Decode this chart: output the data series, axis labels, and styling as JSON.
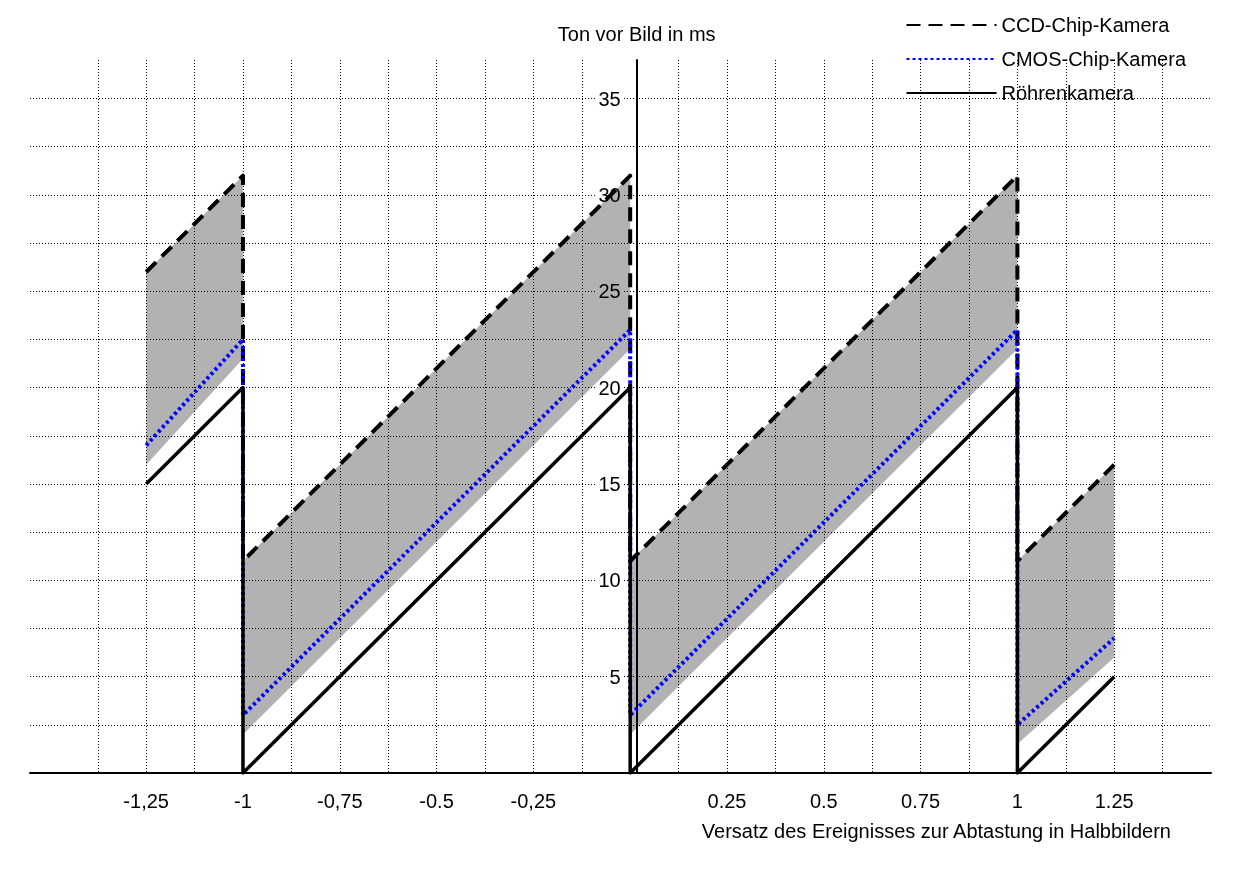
{
  "chart_data": {
    "type": "line",
    "xlabel": "Versatz des Ereignisses zur Abtastung in Halbbildern",
    "ylabel": "Ton vor Bild in ms",
    "xlim": [
      -1.55,
      1.5
    ],
    "ylim": [
      0,
      37
    ],
    "xticks": [
      {
        "value": -1.375,
        "label": null
      },
      {
        "value": -1.25,
        "label": "-1,25"
      },
      {
        "value": -1.125,
        "label": null
      },
      {
        "value": -1,
        "label": "-1"
      },
      {
        "value": -0.875,
        "label": null
      },
      {
        "value": -0.75,
        "label": "-0,75"
      },
      {
        "value": -0.625,
        "label": null
      },
      {
        "value": -0.5,
        "label": "-0.5"
      },
      {
        "value": -0.375,
        "label": null
      },
      {
        "value": -0.25,
        "label": "-0,25"
      },
      {
        "value": -0.125,
        "label": null
      },
      {
        "value": 0.125,
        "label": null
      },
      {
        "value": 0.25,
        "label": "0.25"
      },
      {
        "value": 0.375,
        "label": null
      },
      {
        "value": 0.5,
        "label": "0.5"
      },
      {
        "value": 0.625,
        "label": null
      },
      {
        "value": 0.75,
        "label": "0.75"
      },
      {
        "value": 0.875,
        "label": null
      },
      {
        "value": 1,
        "label": "1"
      },
      {
        "value": 1.125,
        "label": null
      },
      {
        "value": 1.25,
        "label": "1.25"
      },
      {
        "value": 1.375,
        "label": null
      }
    ],
    "yticks": [
      {
        "value": 2.5,
        "label": null
      },
      5,
      {
        "value": 7.5,
        "label": null
      },
      10,
      {
        "value": 12.5,
        "label": null
      },
      15,
      {
        "value": 17.5,
        "label": null
      },
      20,
      {
        "value": 22.5,
        "label": null
      },
      25,
      {
        "value": 27.5,
        "label": null
      },
      30,
      {
        "value": 32.5,
        "label": null
      },
      35
    ],
    "grid": true,
    "legend": "top right",
    "series": [
      {
        "name": "CCD-Chip-Kamera",
        "color": "#000000",
        "line_style": "dashed",
        "x": [
          -1.25,
          -1,
          -1,
          0,
          0,
          1,
          1,
          1.25
        ],
        "values": [
          26,
          31,
          11,
          31,
          11,
          31,
          11,
          16
        ],
        "lower": [
          16,
          21.5,
          2,
          22,
          2,
          22,
          1.5,
          6
        ],
        "upper": [
          26,
          31,
          11,
          31,
          11,
          31,
          11,
          16
        ]
      },
      {
        "name": "CMOS-Chip-Kamera",
        "color": "#0000ff",
        "line_style": "dotted",
        "x": [
          -1.25,
          -1,
          -1,
          0,
          0,
          1,
          1,
          1.25
        ],
        "values": [
          17,
          22.5,
          3,
          23,
          3,
          23,
          2.5,
          7
        ]
      },
      {
        "name": "Röhrenkamera",
        "color": "#000000",
        "line_style": "solid",
        "x": [
          -1.25,
          -1,
          -1,
          0,
          0,
          1,
          1,
          1.25
        ],
        "values": [
          15,
          20,
          0,
          20,
          0,
          20,
          0,
          5
        ]
      }
    ]
  }
}
